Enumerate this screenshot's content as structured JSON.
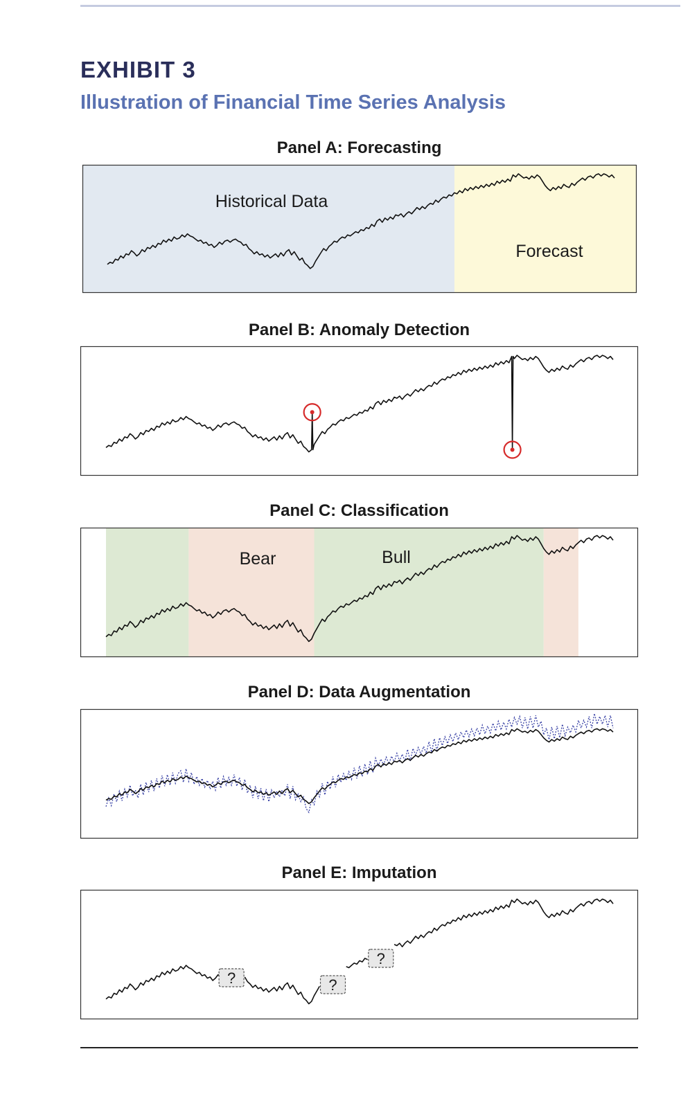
{
  "exhibit": {
    "label": "EXHIBIT 3",
    "title": "Illustration of Financial Time Series Analysis"
  },
  "colors": {
    "historical_bg": "#e2e9f1",
    "forecast_bg": "#fdf9d9",
    "bull_bg": "#dde9d3",
    "bear_bg": "#f5e3d9",
    "line": "#111111",
    "anomaly_marker": "#d62a2a",
    "augmented_line": "#3a43a6",
    "title_dark": "#2a2e5a",
    "title_blue": "#5a72b2"
  },
  "chart_data": [
    {
      "type": "line",
      "panel": "A",
      "title": "Panel A: Forecasting",
      "regions": [
        {
          "label": "Historical Data",
          "start": 0,
          "end": 131,
          "color": "#e2e9f1"
        },
        {
          "label": "Forecast",
          "start": 131,
          "end": 191,
          "color": "#fdf9d9"
        }
      ]
    },
    {
      "type": "line",
      "panel": "B",
      "title": "Panel B: Anomaly Detection",
      "anomalies": [
        {
          "x": 77,
          "marker": "circle"
        },
        {
          "x": 152,
          "marker": "circle"
        }
      ]
    },
    {
      "type": "line",
      "panel": "C",
      "title": "Panel C: Classification",
      "regions": [
        {
          "label": "",
          "start": 0,
          "end": 31,
          "regime": "bull",
          "color": "#dde9d3"
        },
        {
          "label": "Bear",
          "start": 31,
          "end": 78,
          "regime": "bear",
          "color": "#f5e3d9"
        },
        {
          "label": "Bull",
          "start": 78,
          "end": 164,
          "regime": "bull",
          "color": "#dde9d3"
        },
        {
          "label": "",
          "start": 164,
          "end": 177,
          "regime": "bear",
          "color": "#f5e3d9"
        }
      ]
    },
    {
      "type": "line",
      "panel": "D",
      "title": "Panel D: Data Augmentation",
      "series": [
        {
          "style": "solid",
          "color": "#111111"
        },
        {
          "style": "dotted",
          "color": "#3a43a6"
        }
      ]
    },
    {
      "type": "line",
      "panel": "E",
      "title": "Panel E: Imputation",
      "missing_markers": [
        {
          "label": "?",
          "x": 47
        },
        {
          "label": "?",
          "x": 85
        },
        {
          "label": "?",
          "x": 103
        }
      ]
    }
  ],
  "series": {
    "base": [
      12,
      14,
      13,
      17,
      16,
      20,
      18,
      22,
      21,
      25,
      23,
      20,
      22,
      26,
      24,
      28,
      27,
      30,
      28,
      32,
      31,
      35,
      33,
      36,
      34,
      38,
      36,
      37,
      40,
      38,
      41,
      39,
      38,
      36,
      34,
      35,
      32,
      33,
      30,
      31,
      28,
      30,
      33,
      31,
      34,
      35,
      33,
      35,
      36,
      34,
      33,
      30,
      31,
      27,
      25,
      22,
      24,
      21,
      22,
      19,
      21,
      18,
      20,
      22,
      19,
      23,
      20,
      24,
      26,
      21,
      24,
      20,
      16,
      18,
      13,
      11,
      8,
      10,
      15,
      19,
      23,
      27,
      25,
      29,
      31,
      34,
      33,
      36,
      38,
      37,
      40,
      39,
      41,
      43,
      42,
      45,
      44,
      47,
      46,
      50,
      48,
      53,
      55,
      52,
      56,
      54,
      57,
      55,
      59,
      58,
      60,
      57,
      60,
      62,
      60,
      63,
      66,
      64,
      67,
      65,
      68,
      70,
      69,
      73,
      71,
      74,
      76,
      75,
      78,
      77,
      80,
      79,
      82,
      80,
      84,
      82,
      85,
      83,
      86,
      84,
      87,
      85,
      88,
      86,
      89,
      87,
      91,
      89,
      92,
      90,
      93,
      91,
      97,
      95,
      98,
      96,
      94,
      95,
      93,
      96,
      94,
      97,
      95,
      91,
      87,
      84,
      82,
      85,
      83,
      86,
      84,
      88,
      86,
      85,
      89,
      87,
      90,
      92,
      94,
      92,
      95,
      96,
      94,
      97,
      98,
      96,
      98,
      97,
      95,
      97,
      94
    ],
    "augmented": [
      8,
      17,
      9,
      21,
      13,
      24,
      14,
      26,
      18,
      30,
      19,
      25,
      17,
      31,
      20,
      33,
      23,
      35,
      24,
      37,
      27,
      40,
      29,
      41,
      30,
      43,
      32,
      42,
      45,
      33,
      47,
      34,
      43,
      31,
      39,
      30,
      37,
      28,
      35,
      26,
      34,
      25,
      38,
      27,
      39,
      30,
      38,
      30,
      41,
      29,
      38,
      25,
      36,
      22,
      30,
      17,
      29,
      16,
      27,
      14,
      26,
      13,
      25,
      17,
      24,
      18,
      25,
      19,
      31,
      16,
      29,
      15,
      21,
      13,
      18,
      6,
      2,
      15,
      10,
      24,
      18,
      32,
      20,
      34,
      26,
      39,
      28,
      41,
      33,
      42,
      35,
      44,
      36,
      48,
      37,
      50,
      39,
      52,
      41,
      55,
      43,
      58,
      50,
      57,
      51,
      59,
      52,
      60,
      54,
      63,
      55,
      62,
      55,
      67,
      55,
      68,
      61,
      69,
      62,
      70,
      63,
      75,
      64,
      78,
      66,
      79,
      71,
      80,
      73,
      82,
      75,
      84,
      77,
      85,
      79,
      87,
      80,
      88,
      81,
      89,
      82,
      92,
      83,
      91,
      84,
      94,
      86,
      96,
      87,
      95,
      88,
      98,
      90,
      100,
      93,
      101,
      89,
      100,
      88,
      101,
      89,
      102,
      90,
      96,
      82,
      89,
      77,
      90,
      78,
      91,
      79,
      93,
      81,
      90,
      84,
      92,
      85,
      97,
      89,
      97,
      90,
      101,
      89,
      104,
      93,
      101,
      93,
      102,
      90,
      102,
      89
    ]
  },
  "panels": {
    "a": {
      "title": "Panel A: Forecasting",
      "historical_label": "Historical Data",
      "forecast_label": "Forecast"
    },
    "b": {
      "title": "Panel B: Anomaly Detection"
    },
    "c": {
      "title": "Panel C: Classification",
      "bear_label": "Bear",
      "bull_label": "Bull"
    },
    "d": {
      "title": "Panel D: Data Augmentation"
    },
    "e": {
      "title": "Panel E: Imputation",
      "missing_label": "?"
    }
  }
}
